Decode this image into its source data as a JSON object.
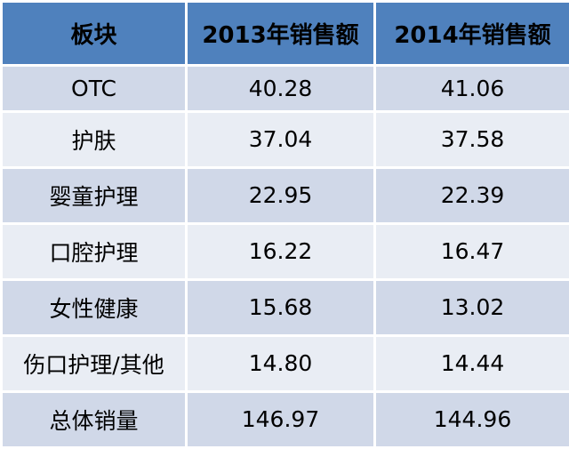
{
  "table": {
    "header": [
      "板块",
      "2013年销售额",
      "2014年销售额"
    ],
    "rows": [
      [
        "OTC",
        "40.28",
        "41.06"
      ],
      [
        "护肤",
        "37.04",
        "37.58"
      ],
      [
        "婴童护理",
        "22.95",
        "22.39"
      ],
      [
        "口腔护理",
        "16.22",
        "16.47"
      ],
      [
        "女性健康",
        "15.68",
        "13.02"
      ],
      [
        "伤口护理/其他",
        "14.80",
        "14.44"
      ],
      [
        "总体销量",
        "146.97",
        "144.96"
      ]
    ]
  }
}
